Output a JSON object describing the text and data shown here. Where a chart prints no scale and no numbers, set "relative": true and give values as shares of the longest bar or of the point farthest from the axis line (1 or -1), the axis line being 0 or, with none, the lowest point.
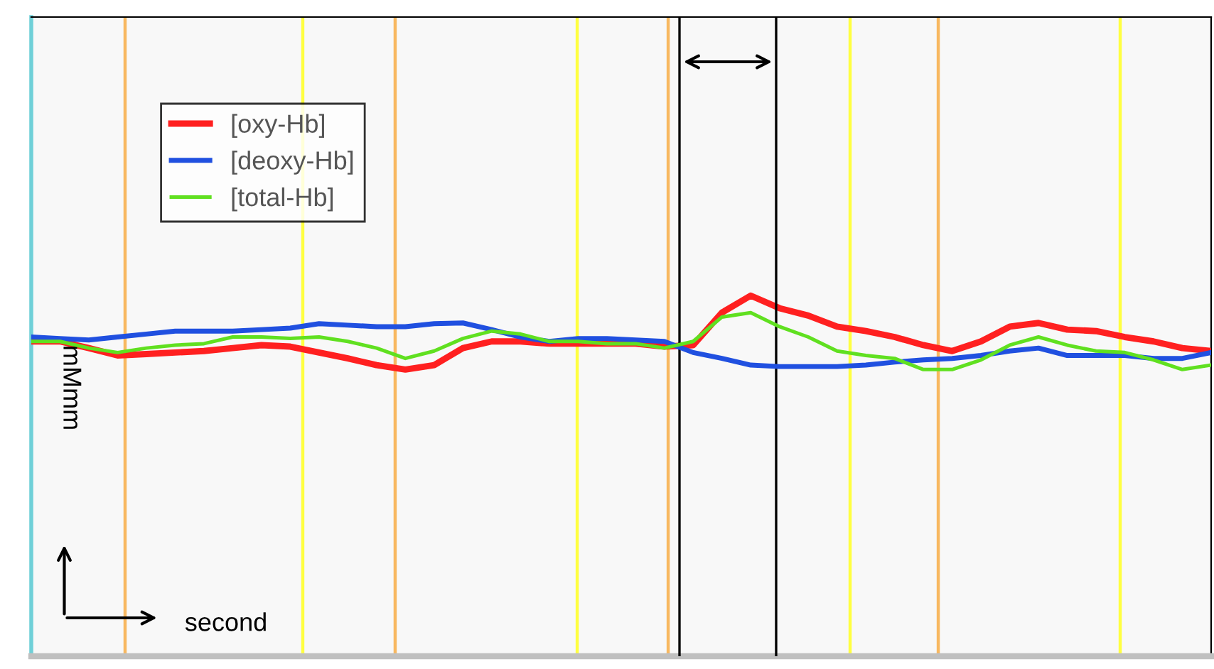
{
  "chart_data": {
    "type": "line",
    "relative": true,
    "annotations": [
      "second"
    ],
    "ylabel": "mMmm",
    "categories": [
      null,
      null,
      null,
      null,
      null,
      null,
      null,
      null,
      null,
      null,
      null,
      null,
      null,
      null,
      null,
      null,
      null,
      null,
      null,
      null,
      null,
      null,
      null,
      null,
      null,
      null,
      null,
      null,
      null,
      null,
      null,
      null,
      null,
      null,
      null,
      null,
      null,
      null,
      null,
      null,
      null,
      null
    ],
    "series": [
      {
        "name": "[oxy-Hb]",
        "color": "#ff2020",
        "values": [
          0.38,
          0.38,
          0.29,
          0.19,
          0.21,
          0.23,
          0.25,
          0.29,
          0.33,
          0.31,
          0.23,
          0.15,
          0.06,
          0,
          0.06,
          0.29,
          0.38,
          0.38,
          0.35,
          0.35,
          0.35,
          0.35,
          0.31,
          0.33,
          0.77,
          1,
          0.83,
          0.73,
          0.58,
          0.52,
          0.44,
          0.33,
          0.25,
          0.38,
          0.58,
          0.63,
          0.54,
          0.52,
          0.44,
          0.38,
          0.29,
          0.25
        ]
      },
      {
        "name": "[deoxy-Hb]",
        "color": "#2050e0",
        "values": [
          0.44,
          0.42,
          0.4,
          0.44,
          0.48,
          0.52,
          0.52,
          0.52,
          0.54,
          0.56,
          0.62,
          0.6,
          0.58,
          0.58,
          0.62,
          0.63,
          0.54,
          0.44,
          0.38,
          0.42,
          0.42,
          0.4,
          0.38,
          0.23,
          0.15,
          0.06,
          0.04,
          0.04,
          0.04,
          0.06,
          0.1,
          0.13,
          0.15,
          0.19,
          0.25,
          0.29,
          0.19,
          0.19,
          0.19,
          0.15,
          0.15,
          0.23
        ]
      },
      {
        "name": "[total-Hb]",
        "color": "#60e020",
        "values": [
          0.38,
          0.38,
          0.29,
          0.23,
          0.29,
          0.33,
          0.35,
          0.44,
          0.44,
          0.42,
          0.44,
          0.38,
          0.29,
          0.15,
          0.25,
          0.42,
          0.52,
          0.48,
          0.38,
          0.38,
          0.35,
          0.35,
          0.29,
          0.38,
          0.71,
          0.77,
          0.58,
          0.44,
          0.25,
          0.19,
          0.15,
          0,
          0,
          0.13,
          0.33,
          0.44,
          0.33,
          0.25,
          0.23,
          0.13,
          0,
          0.06
        ]
      }
    ],
    "legend": "top left",
    "grid": "x"
  }
}
